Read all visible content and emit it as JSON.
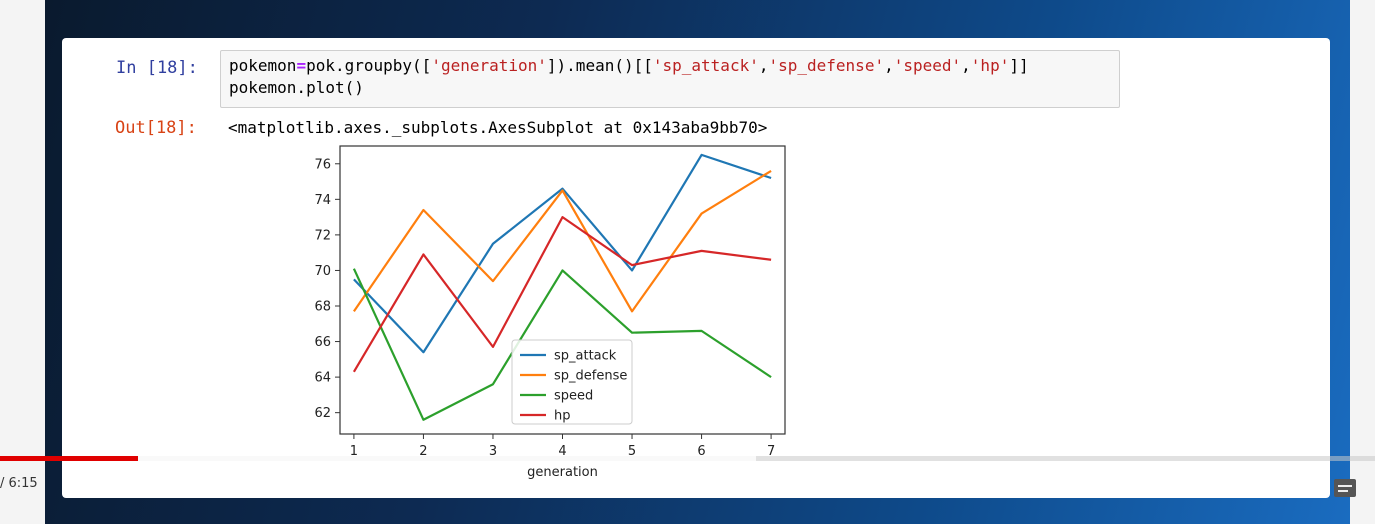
{
  "cell": {
    "in_prompt": "In [18]:",
    "out_prompt": "Out[18]:",
    "code": {
      "line1_a": "pokemon",
      "line1_op": "=",
      "line1_b": "pok.groupby([",
      "line1_s1": "'generation'",
      "line1_c": "]).mean()[[",
      "line1_s2": "'sp_attack'",
      "line1_d": ",",
      "line1_s3": "'sp_defense'",
      "line1_e": ",",
      "line1_s4": "'speed'",
      "line1_f": ",",
      "line1_s5": "'hp'",
      "line1_g": "]]",
      "line2": "pokemon.plot()"
    },
    "output_text": "<matplotlib.axes._subplots.AxesSubplot at 0x143aba9bb70>"
  },
  "chart_data": {
    "type": "line",
    "x": [
      1,
      2,
      3,
      4,
      5,
      6,
      7
    ],
    "xlabel": "generation",
    "ylabel": "",
    "xlim": [
      0.8,
      7.2
    ],
    "ylim": [
      60.8,
      77.0
    ],
    "yticks": [
      62,
      64,
      66,
      68,
      70,
      72,
      74,
      76
    ],
    "xticks": [
      1,
      2,
      3,
      4,
      5,
      6,
      7
    ],
    "legend_position": "lower-center",
    "series": [
      {
        "name": "sp_attack",
        "color": "#1f77b4",
        "values": [
          69.5,
          65.4,
          71.5,
          74.6,
          70.0,
          76.5,
          75.2
        ]
      },
      {
        "name": "sp_defense",
        "color": "#ff7f0e",
        "values": [
          67.7,
          73.4,
          69.4,
          74.5,
          67.7,
          73.2,
          75.6
        ]
      },
      {
        "name": "speed",
        "color": "#2ca02c",
        "values": [
          70.1,
          61.6,
          63.6,
          70.0,
          66.5,
          66.6,
          64.0
        ]
      },
      {
        "name": "hp",
        "color": "#d62728",
        "values": [
          64.3,
          70.9,
          65.7,
          73.0,
          70.3,
          71.1,
          70.6
        ]
      }
    ]
  },
  "player": {
    "time": "/ 6:15",
    "played_fraction": 0.1,
    "buffered_fraction": 0.55
  }
}
